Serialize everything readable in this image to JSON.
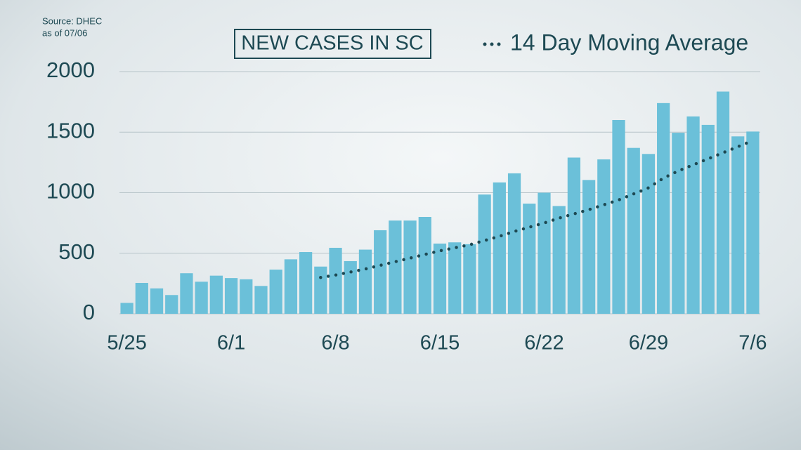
{
  "chart_data": {
    "type": "bar",
    "title": "NEW CASES IN SC",
    "source": "Source: DHEC",
    "note": "as of 07/06",
    "categories": [
      "5/25",
      null,
      null,
      null,
      null,
      null,
      null,
      "6/1",
      null,
      null,
      null,
      null,
      null,
      null,
      "6/8",
      null,
      null,
      null,
      null,
      null,
      null,
      "6/15",
      null,
      null,
      null,
      null,
      null,
      null,
      "6/22",
      null,
      null,
      null,
      null,
      null,
      null,
      "6/29",
      null,
      null,
      null,
      null,
      null,
      null,
      "7/6"
    ],
    "values": [
      90,
      255,
      210,
      155,
      335,
      265,
      315,
      295,
      285,
      230,
      365,
      450,
      510,
      390,
      545,
      435,
      530,
      690,
      770,
      770,
      800,
      580,
      590,
      575,
      985,
      1085,
      1160,
      910,
      1000,
      890,
      1290,
      1105,
      1275,
      1600,
      1370,
      1320,
      1740,
      1495,
      1630,
      1560,
      1835,
      1465,
      1505
    ],
    "color": "#6bc0d9",
    "series": [
      {
        "name": "14 Day Moving Average",
        "color": "#1d4953",
        "values": [
          null,
          null,
          null,
          null,
          null,
          null,
          null,
          null,
          null,
          null,
          null,
          null,
          null,
          300,
          320,
          345,
          370,
          400,
          430,
          460,
          490,
          520,
          545,
          570,
          605,
          640,
          680,
          715,
          750,
          790,
          825,
          860,
          900,
          940,
          990,
          1040,
          1120,
          1180,
          1230,
          1280,
          1330,
          1380,
          1430
        ]
      }
    ],
    "ylim": [
      0,
      2000
    ],
    "yticks": [
      0,
      500,
      1000,
      1500,
      2000
    ],
    "grid": true
  }
}
